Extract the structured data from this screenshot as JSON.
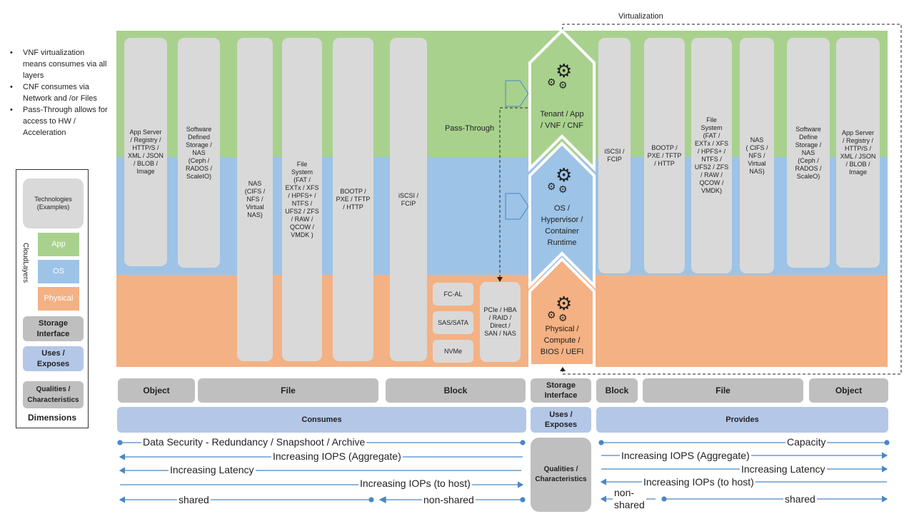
{
  "colors": {
    "app": "#a9d18e",
    "os": "#9dc3e6",
    "physical": "#f4b183",
    "pill": "#d9d9d9",
    "dim_grey": "#bfbfbf",
    "dim_blue": "#b4c7e7",
    "arrow": "#4a86c5"
  },
  "notes": [
    "VNF virtualization means consumes via all layers",
    "CNF consumes via Network  and /or Files",
    "Pass-Through allows for access to HW / Acceleration"
  ],
  "legend": {
    "technologies": "Technologies\n(Examples)",
    "cloud_layers": "CloudLayers",
    "app": "App",
    "os": "OS",
    "physical": "Physical",
    "storage_interface": "Storage\nInterface",
    "uses_exposes": "Uses /\nExposes",
    "qualities": "Qualities /\nCharacteristics",
    "dimensions": "Dimensions"
  },
  "top_labels": {
    "virtualization": "Virtualization",
    "pass_through": "Pass-Through"
  },
  "left_pills": [
    "App Server\n/ Registry /\nHTTP/S /\nXML / JSON\n/ BLOB /\nImage",
    "Software\nDefined\nStorage /\nNAS\n(Ceph /\nRADOS /\nScaleIO)",
    "NAS\n(CIFS /\nNFS /\nVirtual\nNAS)",
    "File\nSystem\n(FAT /\nEXTx / XFS\n/ HPFS+ /\nNTFS /\nUFS2 / ZFS\n/ RAW /\nQCOW /\nVMDK )",
    "BOOTP /\nPXE / TFTP\n/ HTTP",
    "iSCSI /\nFCIP"
  ],
  "physical_items": [
    "FC-AL",
    "SAS/SATA",
    "NVMe",
    "PCIe / HBA\n/ RAID /\nDirect /\nSAN / NAS"
  ],
  "chevrons": {
    "tenant": "Tenant / App\n/ VNF / CNF",
    "os": "OS /\nHypervisor /\nContainer\nRuntime",
    "physical": "Physical /\nCompute /\nBIOS / UEFI"
  },
  "right_pills": [
    "iSCSI /\nFCIP",
    "BOOTP /\nPXE / TFTP\n/ HTTP",
    "File\nSystem\n(FAT /\nEXTx / XFS\n/ HPFS+ /\nNTFS /\nUFS2 / ZFS\n/ RAW /\nQCOW /\nVMDK)",
    "NAS\n( CIFS /\nNFS /\nVirtual\nNAS)",
    "Software\nDefine\nStorage /\nNAS\n(Ceph /\nRADOS /\nScaleO)",
    "App Server\n/ Registry /\nHTTP/S /\nXML / JSON\n/ BLOB /\nImage"
  ],
  "storage_row": {
    "left": [
      "Object",
      "File",
      "Block"
    ],
    "center": "Storage\nInterface",
    "right": [
      "Block",
      "File",
      "Object"
    ]
  },
  "uses_row": {
    "left": "Consumes",
    "center": "Uses /\nExposes",
    "right": "Provides"
  },
  "qualities_center": "Qualities /\nCharacteristics",
  "scales_left": [
    "Data Security - Redundancy / Snapshoot / Archive",
    "Increasing IOPS (Aggregate)",
    "Increasing Latency",
    "Increasing IOPs (to host)",
    "shared",
    "non-shared"
  ],
  "scales_right": [
    "Capacity",
    "Increasing IOPS (Aggregate)",
    "Increasing Latency",
    "Increasing IOPs (to host)",
    "non-\nshared",
    "shared"
  ]
}
